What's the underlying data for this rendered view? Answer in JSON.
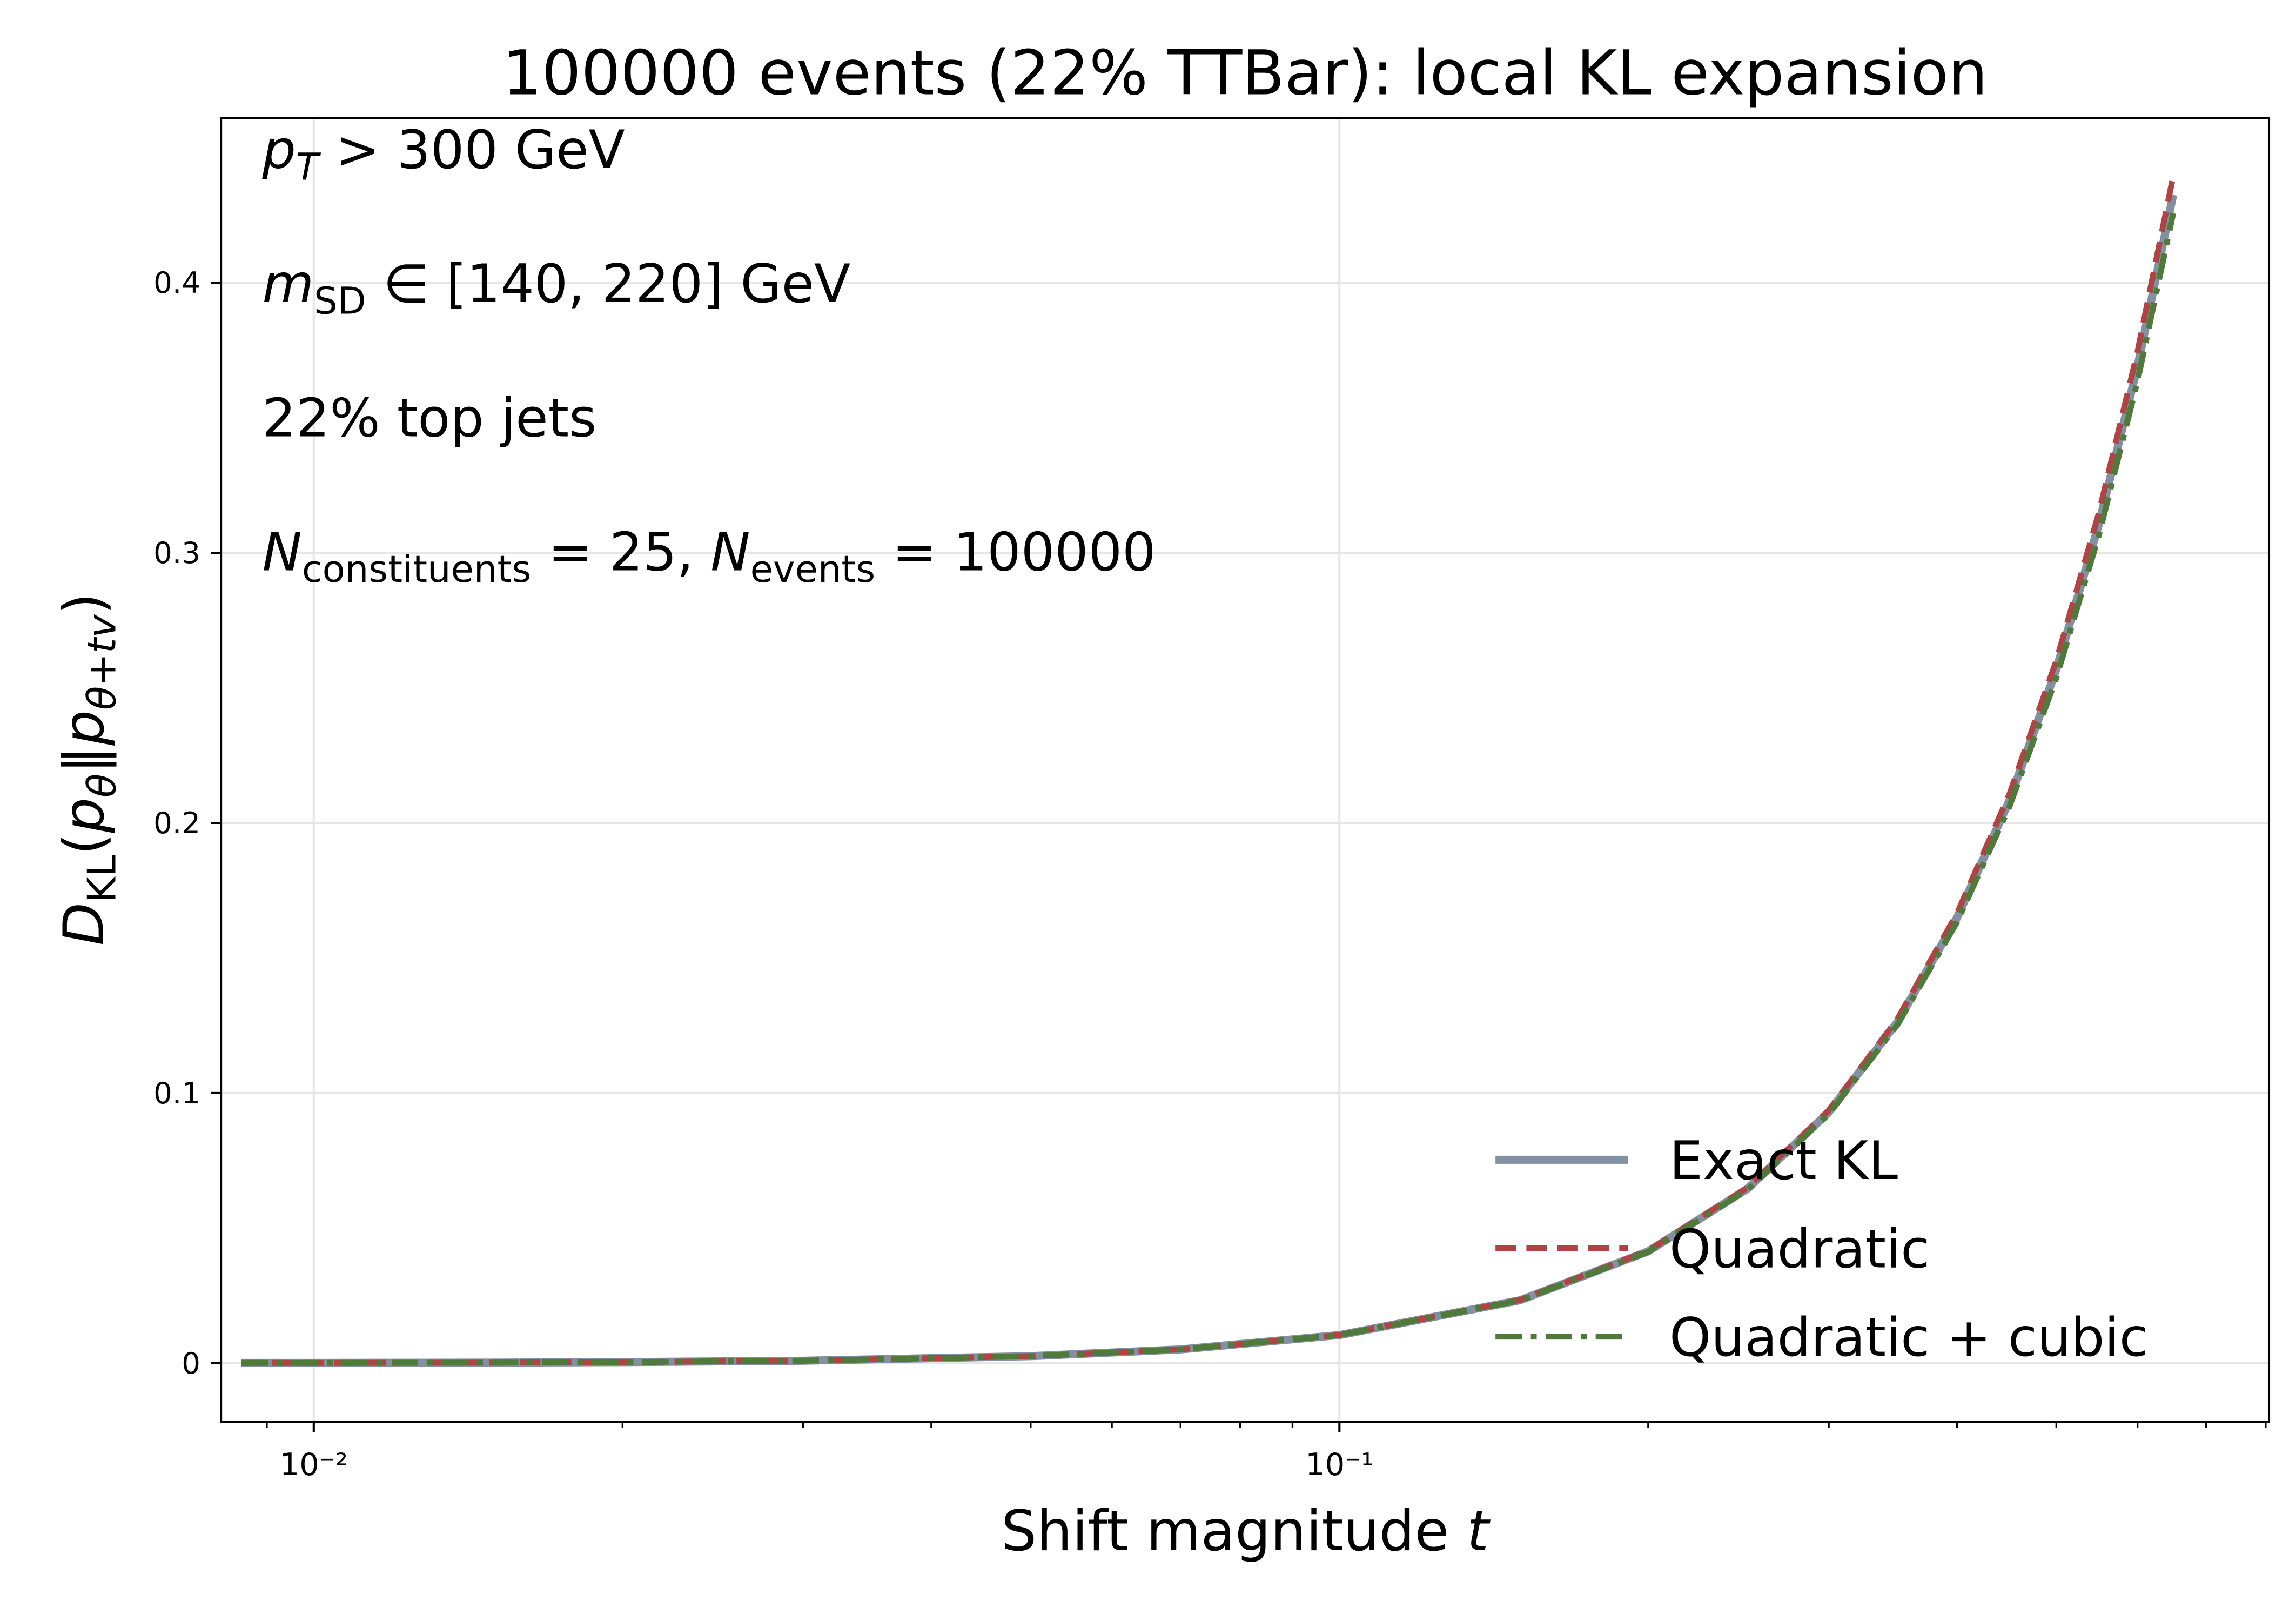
{
  "chart_data": {
    "type": "line",
    "title": "100000 events (22% TTBar): local KL expansion",
    "xlabel": {
      "segments": [
        {
          "text": "Shift magnitude "
        },
        {
          "text": "t",
          "italic": true
        }
      ]
    },
    "ylabel": {
      "segments": [
        {
          "text": "D",
          "italic": true
        },
        {
          "text": "KL",
          "sub": true
        },
        {
          "text": "("
        },
        {
          "text": "p",
          "italic": true
        },
        {
          "text": "θ",
          "italic": true,
          "sub": true
        },
        {
          "text": "‖"
        },
        {
          "text": "p",
          "italic": true
        },
        {
          "text": "θ+tv",
          "italic": true,
          "sub": true
        },
        {
          "text": ")"
        }
      ]
    },
    "annotations": [
      {
        "segments": [
          {
            "text": "p",
            "italic": true
          },
          {
            "text": "T",
            "italic": true,
            "sub": true
          },
          {
            "text": " > 300 GeV"
          }
        ]
      },
      {
        "segments": [
          {
            "text": "m",
            "italic": true
          },
          {
            "text": "SD",
            "sub": true
          },
          {
            "text": " ∈ [140, 220] GeV"
          }
        ]
      },
      {
        "segments": [
          {
            "text": "22% top jets"
          }
        ]
      },
      {
        "segments": [
          {
            "text": "N",
            "italic": true
          },
          {
            "text": "constituents",
            "sub": true
          },
          {
            "text": " = 25, "
          },
          {
            "text": "N",
            "italic": true
          },
          {
            "text": "events",
            "sub": true
          },
          {
            "text": " = 100000"
          }
        ]
      }
    ],
    "xscale": "log",
    "xlim": [
      0.00812,
      0.806
    ],
    "ylim": [
      -0.0218,
      0.461
    ],
    "xticks": [
      {
        "value": 0.01,
        "label": "10⁻²"
      },
      {
        "value": 0.1,
        "label": "10⁻¹"
      }
    ],
    "xminorticks": [
      0.009,
      0.02,
      0.03,
      0.04,
      0.05,
      0.06,
      0.07,
      0.08,
      0.09,
      0.2,
      0.3,
      0.4,
      0.5,
      0.6,
      0.7,
      0.8
    ],
    "yticks": [
      0.0,
      0.1,
      0.2,
      0.3,
      0.4
    ],
    "grid": true,
    "legend": "lower right",
    "x": [
      0.0085,
      0.01,
      0.015,
      0.02,
      0.03,
      0.05,
      0.07,
      0.1,
      0.15,
      0.2,
      0.25,
      0.3,
      0.35,
      0.4,
      0.45,
      0.5,
      0.55,
      0.6,
      0.65
    ],
    "series": [
      {
        "name": "Exact KL",
        "color": "#8390a2",
        "style": "solid",
        "values": [
          0.0001,
          0.0001,
          0.0002,
          0.0004,
          0.0009,
          0.0026,
          0.0051,
          0.0104,
          0.0233,
          0.0414,
          0.0646,
          0.0929,
          0.1263,
          0.1648,
          0.2083,
          0.2568,
          0.3104,
          0.369,
          0.4325
        ]
      },
      {
        "name": "Quadratic",
        "color": "#b04444",
        "style": "dashed",
        "values": [
          0.0001,
          0.0001,
          0.0002,
          0.0004,
          0.0009,
          0.0026,
          0.0051,
          0.0104,
          0.0234,
          0.0416,
          0.065,
          0.0936,
          0.1274,
          0.1664,
          0.2106,
          0.26,
          0.3146,
          0.3744,
          0.4394
        ]
      },
      {
        "name": "Quadratic + cubic",
        "color": "#4e7a3a",
        "style": "dashdot",
        "values": [
          0.0001,
          0.0001,
          0.0002,
          0.0004,
          0.0009,
          0.0026,
          0.0051,
          0.0104,
          0.0232,
          0.0412,
          0.0642,
          0.0922,
          0.1253,
          0.1632,
          0.206,
          0.2537,
          0.3063,
          0.3636,
          0.4257
        ]
      }
    ]
  }
}
